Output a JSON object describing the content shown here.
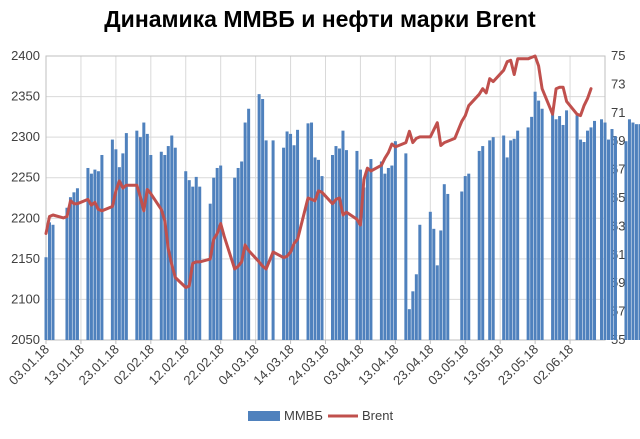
{
  "chart_data": {
    "type": "bar+line",
    "title": "Динамика ММВБ и нефти марки Brent",
    "y_left": {
      "min": 2050,
      "max": 2400,
      "step": 50,
      "ticks": [
        "2050",
        "2100",
        "2150",
        "2200",
        "2250",
        "2300",
        "2350",
        "2400"
      ]
    },
    "y_right": {
      "min": 55,
      "max": 75,
      "step": 2,
      "ticks": [
        "55",
        "57",
        "59",
        "61",
        "63",
        "65",
        "67",
        "69",
        "71",
        "73",
        "75"
      ]
    },
    "x_tick_labels": [
      "03.01.18",
      "13.01.18",
      "23.01.18",
      "02.02.18",
      "12.02.18",
      "22.02.18",
      "04.03.18",
      "14.03.18",
      "24.03.18",
      "03.04.18",
      "13.04.18",
      "23.04.18",
      "03.05.18",
      "13.05.18",
      "23.05.18",
      "02.06.18"
    ],
    "x_start": "03.01.18",
    "x_end": "12.06.18",
    "legend": {
      "position": "bottom",
      "entries": [
        "ММВБ",
        "Brent"
      ]
    },
    "colors": {
      "bars": "#4f81bd",
      "line": "#c0504d",
      "grid": "#d9d9d9",
      "axis": "#bfbfbf"
    },
    "series": [
      {
        "name": "ММВБ",
        "kind": "bar",
        "axis": "left",
        "points": [
          [
            "03.01.18",
            2152
          ],
          [
            "04.01.18",
            2195
          ],
          [
            "05.01.18",
            2192
          ],
          [
            "09.01.18",
            2213
          ],
          [
            "10.01.18",
            2226
          ],
          [
            "11.01.18",
            2232
          ],
          [
            "12.01.18",
            2237
          ],
          [
            "15.01.18",
            2262
          ],
          [
            "16.01.18",
            2255
          ],
          [
            "17.01.18",
            2260
          ],
          [
            "18.01.18",
            2258
          ],
          [
            "19.01.18",
            2278
          ],
          [
            "22.01.18",
            2297
          ],
          [
            "23.01.18",
            2285
          ],
          [
            "24.01.18",
            2263
          ],
          [
            "25.01.18",
            2280
          ],
          [
            "26.01.18",
            2305
          ],
          [
            "29.01.18",
            2308
          ],
          [
            "30.01.18",
            2300
          ],
          [
            "31.01.18",
            2318
          ],
          [
            "01.02.18",
            2304
          ],
          [
            "02.02.18",
            2278
          ],
          [
            "05.02.18",
            2282
          ],
          [
            "06.02.18",
            2278
          ],
          [
            "07.02.18",
            2289
          ],
          [
            "08.02.18",
            2302
          ],
          [
            "09.02.18",
            2287
          ],
          [
            "12.02.18",
            2258
          ],
          [
            "13.02.18",
            2247
          ],
          [
            "14.02.18",
            2239
          ],
          [
            "15.02.18",
            2251
          ],
          [
            "16.02.18",
            2239
          ],
          [
            "19.02.18",
            2218
          ],
          [
            "20.02.18",
            2250
          ],
          [
            "21.02.18",
            2262
          ],
          [
            "22.02.18",
            2265
          ],
          [
            "26.02.18",
            2250
          ],
          [
            "27.02.18",
            2262
          ],
          [
            "28.02.18",
            2270
          ],
          [
            "01.03.18",
            2318
          ],
          [
            "02.03.18",
            2335
          ],
          [
            "05.03.18",
            2353
          ],
          [
            "06.03.18",
            2347
          ],
          [
            "07.03.18",
            2296
          ],
          [
            "09.03.18",
            2296
          ],
          [
            "12.03.18",
            2287
          ],
          [
            "13.03.18",
            2307
          ],
          [
            "14.03.18",
            2304
          ],
          [
            "15.03.18",
            2290
          ],
          [
            "16.03.18",
            2309
          ],
          [
            "19.03.18",
            2317
          ],
          [
            "20.03.18",
            2318
          ],
          [
            "21.03.18",
            2275
          ],
          [
            "22.03.18",
            2272
          ],
          [
            "23.03.18",
            2252
          ],
          [
            "26.03.18",
            2278
          ],
          [
            "27.03.18",
            2289
          ],
          [
            "28.03.18",
            2286
          ],
          [
            "29.03.18",
            2308
          ],
          [
            "30.03.18",
            2284
          ],
          [
            "02.04.18",
            2283
          ],
          [
            "03.04.18",
            2260
          ],
          [
            "04.04.18",
            2238
          ],
          [
            "05.04.18",
            2262
          ],
          [
            "06.04.18",
            2273
          ],
          [
            "09.04.18",
            2270
          ],
          [
            "10.04.18",
            2255
          ],
          [
            "11.04.18",
            2262
          ],
          [
            "12.04.18",
            2265
          ],
          [
            "13.04.18",
            2295
          ],
          [
            "16.04.18",
            2280
          ],
          [
            "17.04.18",
            2088
          ],
          [
            "18.04.18",
            2110
          ],
          [
            "19.04.18",
            2131
          ],
          [
            "20.04.18",
            2192
          ],
          [
            "23.04.18",
            2208
          ],
          [
            "24.04.18",
            2187
          ],
          [
            "25.04.18",
            2142
          ],
          [
            "26.04.18",
            2185
          ],
          [
            "27.04.18",
            2242
          ],
          [
            "28.04.18",
            2230
          ],
          [
            "02.05.18",
            2233
          ],
          [
            "03.05.18",
            2252
          ],
          [
            "04.05.18",
            2255
          ],
          [
            "07.05.18",
            2283
          ],
          [
            "08.05.18",
            2289
          ],
          [
            "10.05.18",
            2296
          ],
          [
            "11.05.18",
            2300
          ],
          [
            "14.05.18",
            2302
          ],
          [
            "15.05.18",
            2275
          ],
          [
            "16.05.18",
            2296
          ],
          [
            "17.05.18",
            2298
          ],
          [
            "18.05.18",
            2308
          ],
          [
            "21.05.18",
            2312
          ],
          [
            "22.05.18",
            2325
          ],
          [
            "23.05.18",
            2356
          ],
          [
            "24.05.18",
            2345
          ],
          [
            "25.05.18",
            2335
          ],
          [
            "28.05.18",
            2328
          ],
          [
            "29.05.18",
            2322
          ],
          [
            "30.05.18",
            2326
          ],
          [
            "31.05.18",
            2315
          ],
          [
            "01.06.18",
            2333
          ],
          [
            "04.06.18",
            2327
          ],
          [
            "05.06.18",
            2297
          ],
          [
            "06.06.18",
            2294
          ],
          [
            "07.06.18",
            2308
          ],
          [
            "08.06.18",
            2312
          ],
          [
            "09.06.18",
            2320
          ],
          [
            "11.06.18",
            2322
          ],
          [
            "12.06.18",
            2318
          ],
          [
            "13.06.18",
            2297
          ],
          [
            "14.06.18",
            2310
          ],
          [
            "15.06.18",
            2301
          ],
          [
            "18.06.18",
            2295
          ],
          [
            "19.06.18",
            2322
          ],
          [
            "20.06.18",
            2318
          ],
          [
            "21.06.18",
            2316
          ],
          [
            "22.06.18",
            2316
          ],
          [
            "25.06.18",
            2267
          ],
          [
            "26.06.18",
            2280
          ]
        ]
      },
      {
        "name": "Brent",
        "kind": "line",
        "axis": "right",
        "points": [
          [
            "03.01.18",
            62.5
          ],
          [
            "04.01.18",
            63.7
          ],
          [
            "05.01.18",
            63.8
          ],
          [
            "08.01.18",
            63.6
          ],
          [
            "09.01.18",
            63.7
          ],
          [
            "10.01.18",
            64.8
          ],
          [
            "11.01.18",
            64.6
          ],
          [
            "12.01.18",
            64.6
          ],
          [
            "15.01.18",
            64.9
          ],
          [
            "16.01.18",
            64.5
          ],
          [
            "17.01.18",
            64.7
          ],
          [
            "18.01.18",
            64.2
          ],
          [
            "19.01.18",
            64.1
          ],
          [
            "22.01.18",
            64.4
          ],
          [
            "23.01.18",
            65.5
          ],
          [
            "24.01.18",
            66.2
          ],
          [
            "25.01.18",
            65.7
          ],
          [
            "26.01.18",
            65.9
          ],
          [
            "29.01.18",
            65.9
          ],
          [
            "30.01.18",
            65.1
          ],
          [
            "31.01.18",
            64.1
          ],
          [
            "01.02.18",
            65.6
          ],
          [
            "02.02.18",
            65.3
          ],
          [
            "05.02.18",
            64.2
          ],
          [
            "06.02.18",
            63.4
          ],
          [
            "07.02.18",
            61.4
          ],
          [
            "08.02.18",
            60.3
          ],
          [
            "09.02.18",
            59.4
          ],
          [
            "12.02.18",
            58.7
          ],
          [
            "13.02.18",
            58.8
          ],
          [
            "14.02.18",
            60.4
          ],
          [
            "15.02.18",
            60.5
          ],
          [
            "16.02.18",
            60.5
          ],
          [
            "19.02.18",
            60.7
          ],
          [
            "20.02.18",
            62.1
          ],
          [
            "21.02.18",
            62.5
          ],
          [
            "22.02.18",
            63.2
          ],
          [
            "23.02.18",
            62.3
          ],
          [
            "26.02.18",
            60.0
          ],
          [
            "27.02.18",
            60.2
          ],
          [
            "28.02.18",
            60.5
          ],
          [
            "01.03.18",
            61.7
          ],
          [
            "02.03.18",
            61.3
          ],
          [
            "05.03.18",
            60.5
          ],
          [
            "06.03.18",
            60.2
          ],
          [
            "07.03.18",
            60.0
          ],
          [
            "09.03.18",
            61.2
          ],
          [
            "12.03.18",
            60.8
          ],
          [
            "13.03.18",
            60.9
          ],
          [
            "14.03.18",
            61.2
          ],
          [
            "15.03.18",
            61.8
          ],
          [
            "16.03.18",
            62.1
          ],
          [
            "19.03.18",
            65.0
          ],
          [
            "20.03.18",
            64.9
          ],
          [
            "21.03.18",
            64.8
          ],
          [
            "22.03.18",
            65.5
          ],
          [
            "23.03.18",
            65.4
          ],
          [
            "26.03.18",
            64.6
          ],
          [
            "27.03.18",
            64.9
          ],
          [
            "28.03.18",
            65.0
          ],
          [
            "29.03.18",
            63.8
          ],
          [
            "30.03.18",
            64.0
          ],
          [
            "02.04.18",
            63.5
          ],
          [
            "03.04.18",
            63.1
          ],
          [
            "04.04.18",
            66.3
          ],
          [
            "05.04.18",
            67.1
          ],
          [
            "06.04.18",
            66.9
          ],
          [
            "09.04.18",
            67.3
          ],
          [
            "10.04.18",
            67.8
          ],
          [
            "11.04.18",
            68.2
          ],
          [
            "12.04.18",
            68.8
          ],
          [
            "13.04.18",
            68.6
          ],
          [
            "16.04.18",
            68.9
          ],
          [
            "17.04.18",
            69.7
          ],
          [
            "18.04.18",
            68.9
          ],
          [
            "19.04.18",
            69.2
          ],
          [
            "20.04.18",
            69.3
          ],
          [
            "23.04.18",
            69.3
          ],
          [
            "24.04.18",
            69.8
          ],
          [
            "25.04.18",
            70.3
          ],
          [
            "26.04.18",
            68.7
          ],
          [
            "27.04.18",
            68.9
          ],
          [
            "30.04.18",
            69.2
          ],
          [
            "02.05.18",
            70.4
          ],
          [
            "03.05.18",
            70.8
          ],
          [
            "04.05.18",
            71.5
          ],
          [
            "07.05.18",
            72.3
          ],
          [
            "08.05.18",
            72.7
          ],
          [
            "09.05.18",
            72.4
          ],
          [
            "10.05.18",
            73.4
          ],
          [
            "11.05.18",
            73.2
          ],
          [
            "14.05.18",
            74.0
          ],
          [
            "15.05.18",
            74.6
          ],
          [
            "16.05.18",
            74.7
          ],
          [
            "17.05.18",
            73.7
          ],
          [
            "18.05.18",
            74.8
          ],
          [
            "21.05.18",
            74.8
          ],
          [
            "22.05.18",
            74.9
          ],
          [
            "23.05.18",
            75.0
          ],
          [
            "24.05.18",
            74.3
          ],
          [
            "25.05.18",
            72.7
          ],
          [
            "28.05.18",
            70.9
          ],
          [
            "29.05.18",
            72.7
          ],
          [
            "30.05.18",
            72.8
          ],
          [
            "31.05.18",
            72.8
          ],
          [
            "01.06.18",
            71.8
          ],
          [
            "04.06.18",
            70.9
          ],
          [
            "05.06.18",
            70.8
          ],
          [
            "06.06.18",
            71.5
          ],
          [
            "07.06.18",
            72.0
          ],
          [
            "08.06.18",
            72.7
          ]
        ]
      }
    ]
  }
}
